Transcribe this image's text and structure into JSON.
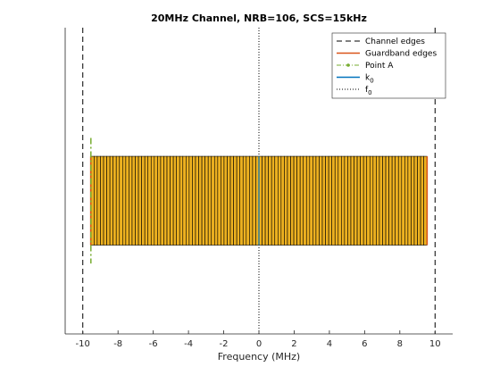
{
  "chart_data": {
    "type": "bar",
    "title": "20MHz Channel,  NRB=106, SCS=15kHz",
    "xlabel": "Frequency (MHz)",
    "ylabel": "",
    "xlim": [
      -11,
      11
    ],
    "ylim": [
      0,
      1
    ],
    "xticks": [
      -10,
      -8,
      -6,
      -4,
      -2,
      0,
      2,
      4,
      6,
      8,
      10
    ],
    "grid": false,
    "legend_position": "top-right",
    "nrb": 106,
    "scs_khz": 15,
    "rb_start_mhz": -9.54,
    "rb_end_mhz": 9.54,
    "rb_bottom": 0.29,
    "rb_top": 0.58,
    "rb_fill_color": "#EDB120",
    "channel_edges": [
      -10,
      10
    ],
    "guardband_edges": [
      -9.55,
      9.55
    ],
    "point_a": {
      "x": -9.54,
      "y_range": [
        0.23,
        0.64
      ]
    },
    "k0": {
      "x": 0,
      "y_range": [
        0.29,
        0.58
      ]
    },
    "f0": {
      "x": 0
    },
    "series": [
      {
        "name": "Channel edges",
        "color": "#000000",
        "style": "dashed"
      },
      {
        "name": "Guardband edges",
        "color": "#D95319",
        "style": "solid"
      },
      {
        "name": "Point A",
        "color": "#77AC30",
        "style": "dash-dot"
      },
      {
        "name": "k",
        "subscript": "0",
        "color": "#0072BD",
        "style": "solid"
      },
      {
        "name": "f",
        "subscript": "0",
        "color": "#000000",
        "style": "dotted"
      }
    ]
  }
}
